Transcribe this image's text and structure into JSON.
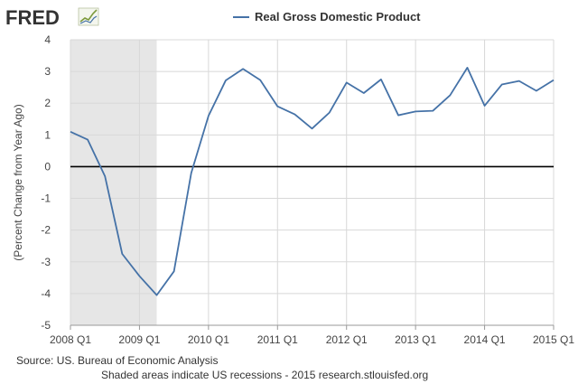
{
  "header": {
    "logo_text": "FRED",
    "logo_icon": "line-chart-icon"
  },
  "chart_data": {
    "type": "line",
    "title": "",
    "legend": {
      "position": "top-center",
      "entries": [
        "Real Gross Domestic Product"
      ]
    },
    "ylabel": "(Percent Change from Year Ago)",
    "xlabel": "",
    "ylim": [
      -5,
      4
    ],
    "yticks": [
      -5,
      -4,
      -3,
      -2,
      -1,
      0,
      1,
      2,
      3,
      4
    ],
    "xlim": [
      "2008 Q1",
      "2015 Q1"
    ],
    "xticks": [
      "2008 Q1",
      "2009 Q1",
      "2010 Q1",
      "2011 Q1",
      "2012 Q1",
      "2013 Q1",
      "2014 Q1",
      "2015 Q1"
    ],
    "grid": true,
    "zero_line": true,
    "recession_shading": [
      {
        "start": "2008 Q1",
        "end": "2009 Q2",
        "color": "#e6e6e6"
      }
    ],
    "series": [
      {
        "name": "Real Gross Domestic Product",
        "color": "#4572a7",
        "x": [
          "2008 Q1",
          "2008 Q2",
          "2008 Q3",
          "2008 Q4",
          "2009 Q1",
          "2009 Q2",
          "2009 Q3",
          "2009 Q4",
          "2010 Q1",
          "2010 Q2",
          "2010 Q3",
          "2010 Q4",
          "2011 Q1",
          "2011 Q2",
          "2011 Q3",
          "2011 Q4",
          "2012 Q1",
          "2012 Q2",
          "2012 Q3",
          "2012 Q4",
          "2013 Q1",
          "2013 Q2",
          "2013 Q3",
          "2013 Q4",
          "2014 Q1",
          "2014 Q2",
          "2014 Q3",
          "2014 Q4",
          "2015 Q1"
        ],
        "values": [
          1.1,
          0.85,
          -0.3,
          -2.75,
          -3.45,
          -4.05,
          -3.3,
          -0.2,
          1.6,
          2.72,
          3.08,
          2.73,
          1.9,
          1.65,
          1.2,
          1.7,
          2.65,
          2.32,
          2.75,
          1.62,
          1.74,
          1.76,
          2.25,
          3.12,
          1.92,
          2.59,
          2.7,
          2.39,
          2.73
        ]
      }
    ]
  },
  "footer": {
    "source": "Source: US. Bureau of Economic Analysis",
    "note": "Shaded areas indicate US recessions - 2015 research.stlouisfed.org"
  }
}
